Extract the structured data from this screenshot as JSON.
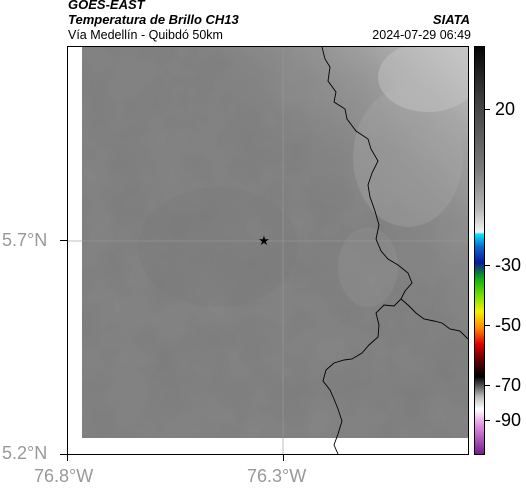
{
  "header": {
    "satellite": "GOES-EAST",
    "product": "Temperatura de Brillo CH13",
    "region": "Vía Medellín - Quibdó 50km",
    "brand": "SIATA",
    "datetime": "2024-07-29 06:49"
  },
  "map": {
    "y_ticks": [
      "5.7°N",
      "5.2°N"
    ],
    "x_ticks": [
      "76.8°W",
      "76.3°W"
    ],
    "marker": "star-icon",
    "background_color": "#7f7f7f"
  },
  "colorbar": {
    "ticks": [
      "20",
      "-30",
      "-50",
      "-70",
      "-90"
    ]
  }
}
